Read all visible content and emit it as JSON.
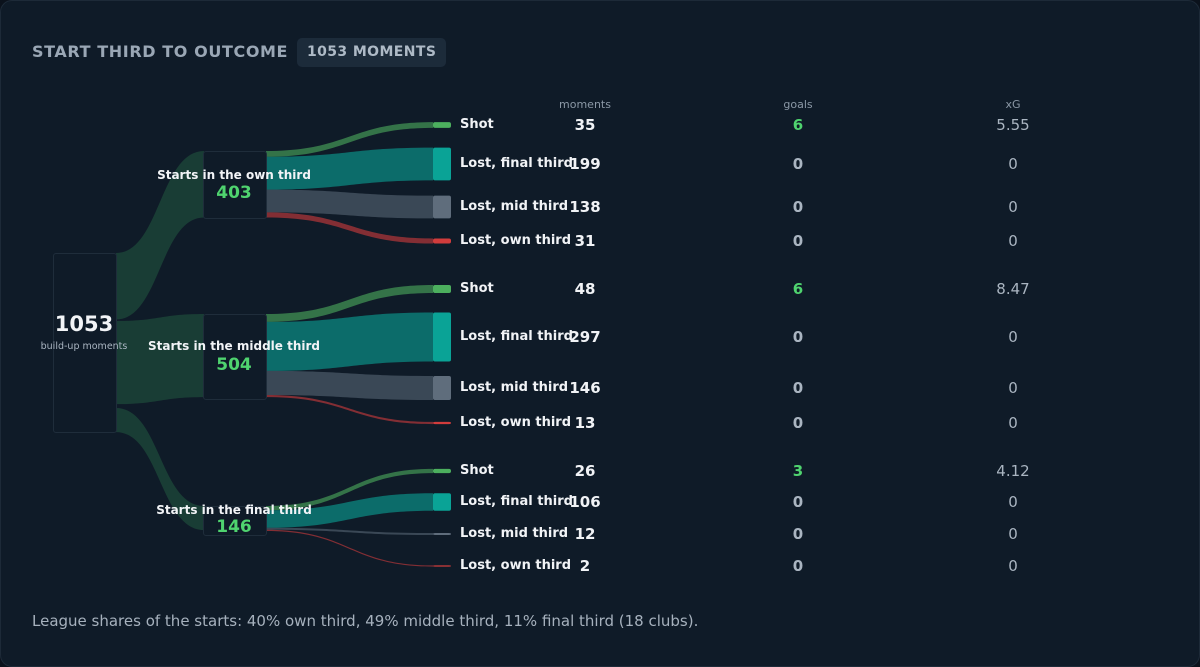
{
  "header": {
    "title": "START THIRD TO OUTCOME",
    "badge": "1053 MOMENTS"
  },
  "columns": {
    "moments": "moments",
    "goals": "goals",
    "xg": "xG"
  },
  "root": {
    "value": "1053",
    "label": "build-up moments"
  },
  "groups": [
    {
      "label": "Starts in the own third",
      "value": "403",
      "outcomes": [
        {
          "label": "Shot",
          "moments": "35",
          "goals": "6",
          "xg": "5.55",
          "kind": "shot"
        },
        {
          "label": "Lost, final third",
          "moments": "199",
          "goals": "0",
          "xg": "0",
          "kind": "final"
        },
        {
          "label": "Lost, mid third",
          "moments": "138",
          "goals": "0",
          "xg": "0",
          "kind": "mid"
        },
        {
          "label": "Lost, own third",
          "moments": "31",
          "goals": "0",
          "xg": "0",
          "kind": "own"
        }
      ]
    },
    {
      "label": "Starts in the middle third",
      "value": "504",
      "outcomes": [
        {
          "label": "Shot",
          "moments": "48",
          "goals": "6",
          "xg": "8.47",
          "kind": "shot"
        },
        {
          "label": "Lost, final third",
          "moments": "297",
          "goals": "0",
          "xg": "0",
          "kind": "final"
        },
        {
          "label": "Lost, mid third",
          "moments": "146",
          "goals": "0",
          "xg": "0",
          "kind": "mid"
        },
        {
          "label": "Lost, own third",
          "moments": "13",
          "goals": "0",
          "xg": "0",
          "kind": "own"
        }
      ]
    },
    {
      "label": "Starts in the final third",
      "value": "146",
      "outcomes": [
        {
          "label": "Shot",
          "moments": "26",
          "goals": "3",
          "xg": "4.12",
          "kind": "shot"
        },
        {
          "label": "Lost, final third",
          "moments": "106",
          "goals": "0",
          "xg": "0",
          "kind": "final"
        },
        {
          "label": "Lost, mid third",
          "moments": "12",
          "goals": "0",
          "xg": "0",
          "kind": "mid"
        },
        {
          "label": "Lost, own third",
          "moments": "2",
          "goals": "0",
          "xg": "0",
          "kind": "own"
        }
      ]
    }
  ],
  "colors": {
    "shot": "#4caf5e",
    "final": "#0aa396",
    "mid": "#5f6d7c",
    "own": "#d13c3c",
    "accent": "#4fd36f",
    "root_flow": "#1e4a3a"
  },
  "footnote": "League shares of the starts: 40% own third, 49% middle third, 11% final third (18 clubs)."
}
